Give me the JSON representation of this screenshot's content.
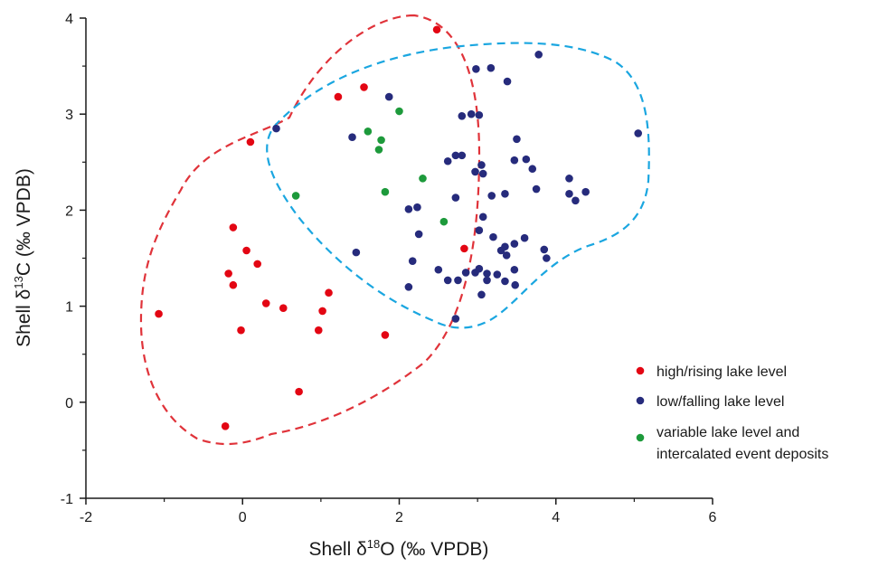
{
  "chart_data": {
    "type": "scatter",
    "xlabel": {
      "prefix": "Shell δ",
      "sup": "18",
      "suffix": "O (‰ VPDB)"
    },
    "ylabel": {
      "prefix": "Shell δ",
      "sup": "13",
      "suffix": "C (‰ VPDB)"
    },
    "xlim": [
      -2,
      6
    ],
    "ylim": [
      -1,
      4
    ],
    "xticks": [
      -2,
      0,
      2,
      4,
      6
    ],
    "yticks": [
      -1,
      0,
      1,
      2,
      3,
      4
    ],
    "grid": false,
    "legend_position": "bottom-right",
    "series": [
      {
        "name": "high/rising lake level",
        "color": "#e30613",
        "points": [
          [
            2.48,
            3.88
          ],
          [
            1.22,
            3.18
          ],
          [
            1.55,
            3.28
          ],
          [
            0.1,
            2.71
          ],
          [
            -0.12,
            1.82
          ],
          [
            0.05,
            1.58
          ],
          [
            0.19,
            1.44
          ],
          [
            -0.18,
            1.34
          ],
          [
            -0.12,
            1.22
          ],
          [
            1.1,
            1.14
          ],
          [
            0.3,
            1.03
          ],
          [
            0.52,
            0.98
          ],
          [
            1.02,
            0.95
          ],
          [
            -1.07,
            0.92
          ],
          [
            -0.02,
            0.75
          ],
          [
            0.97,
            0.75
          ],
          [
            1.82,
            0.7
          ],
          [
            0.72,
            0.11
          ],
          [
            -0.22,
            -0.25
          ],
          [
            2.83,
            1.6
          ]
        ]
      },
      {
        "name": "low/falling lake level",
        "color": "#262b7c",
        "points": [
          [
            3.78,
            3.62
          ],
          [
            2.98,
            3.47
          ],
          [
            3.17,
            3.48
          ],
          [
            3.38,
            3.34
          ],
          [
            1.87,
            3.18
          ],
          [
            2.8,
            2.98
          ],
          [
            2.92,
            3.0
          ],
          [
            3.02,
            2.99
          ],
          [
            0.43,
            2.85
          ],
          [
            1.4,
            2.76
          ],
          [
            5.05,
            2.8
          ],
          [
            3.5,
            2.74
          ],
          [
            2.62,
            2.51
          ],
          [
            2.72,
            2.57
          ],
          [
            2.8,
            2.57
          ],
          [
            3.05,
            2.47
          ],
          [
            3.47,
            2.52
          ],
          [
            3.62,
            2.53
          ],
          [
            3.7,
            2.43
          ],
          [
            2.97,
            2.4
          ],
          [
            3.07,
            2.38
          ],
          [
            4.17,
            2.33
          ],
          [
            3.75,
            2.22
          ],
          [
            3.35,
            2.17
          ],
          [
            3.18,
            2.15
          ],
          [
            4.38,
            2.19
          ],
          [
            4.17,
            2.17
          ],
          [
            4.25,
            2.1
          ],
          [
            2.72,
            2.13
          ],
          [
            2.23,
            2.03
          ],
          [
            2.12,
            2.01
          ],
          [
            3.07,
            1.93
          ],
          [
            2.25,
            1.75
          ],
          [
            3.02,
            1.79
          ],
          [
            3.2,
            1.72
          ],
          [
            3.6,
            1.71
          ],
          [
            3.47,
            1.65
          ],
          [
            3.35,
            1.62
          ],
          [
            3.85,
            1.59
          ],
          [
            1.45,
            1.56
          ],
          [
            3.3,
            1.58
          ],
          [
            3.37,
            1.53
          ],
          [
            3.88,
            1.5
          ],
          [
            2.17,
            1.47
          ],
          [
            2.5,
            1.38
          ],
          [
            2.97,
            1.35
          ],
          [
            3.02,
            1.39
          ],
          [
            3.12,
            1.34
          ],
          [
            2.62,
            1.27
          ],
          [
            2.75,
            1.27
          ],
          [
            3.12,
            1.27
          ],
          [
            3.35,
            1.26
          ],
          [
            3.48,
            1.22
          ],
          [
            2.12,
            1.2
          ],
          [
            3.05,
            1.12
          ],
          [
            2.72,
            0.87
          ],
          [
            2.85,
            1.35
          ],
          [
            3.25,
            1.33
          ],
          [
            3.47,
            1.38
          ]
        ]
      },
      {
        "name": "variable lake level and intercalated event deposits",
        "color": "#1d9a3b",
        "points": [
          [
            2.0,
            3.03
          ],
          [
            1.6,
            2.82
          ],
          [
            1.77,
            2.73
          ],
          [
            1.74,
            2.63
          ],
          [
            0.68,
            2.15
          ],
          [
            2.3,
            2.33
          ],
          [
            1.82,
            2.19
          ],
          [
            2.57,
            1.88
          ]
        ]
      }
    ]
  },
  "legend": {
    "entries": [
      {
        "lines": [
          "high/rising lake level"
        ],
        "color": "#e30613"
      },
      {
        "lines": [
          "low/falling lake level"
        ],
        "color": "#262b7c"
      },
      {
        "lines": [
          "variable lake level and",
          "intercalated event deposits"
        ],
        "color": "#1d9a3b"
      }
    ]
  },
  "envelopes": {
    "red": {
      "color": "#e0333a"
    },
    "blue": {
      "color": "#1aa6e0"
    }
  }
}
